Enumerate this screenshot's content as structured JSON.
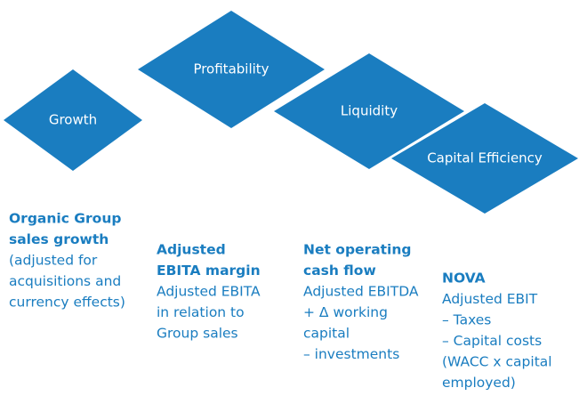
{
  "diamonds": [
    "Growth",
    "Profitability",
    "Liquidity",
    "Capital Efficiency"
  ],
  "columns": [
    {
      "heading": [
        "Organic Group",
        "sales growth"
      ],
      "lines": [
        "(adjusted for",
        "acquisitions and",
        "currency effects)"
      ]
    },
    {
      "heading": [
        "Adjusted",
        "EBITA margin"
      ],
      "lines": [
        "Adjusted EBITA",
        "in relation to",
        "Group sales"
      ]
    },
    {
      "heading": [
        "Net operating",
        "cash flow"
      ],
      "lines": [
        "Adjusted EBITDA",
        "+ Δ working",
        "capital",
        "– investments"
      ]
    },
    {
      "heading": [
        "NOVA"
      ],
      "lines": [
        "Adjusted EBIT",
        "– Taxes",
        "– Capital costs",
        "(WACC x capital",
        "employed)"
      ]
    }
  ]
}
